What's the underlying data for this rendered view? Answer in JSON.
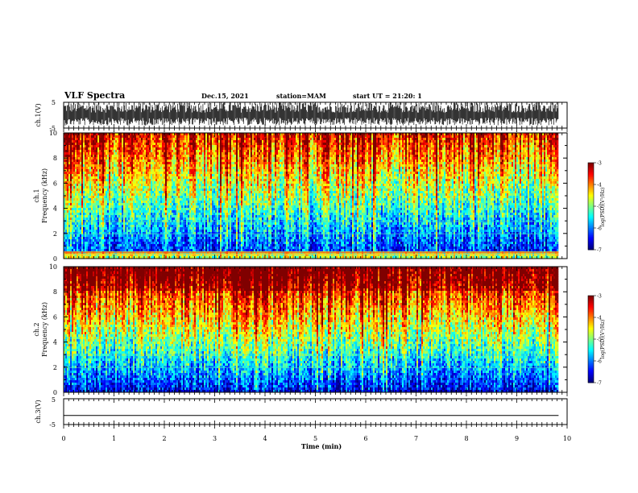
{
  "header": {
    "title": "VLF Spectra",
    "date": "Dec.15, 2021",
    "station": "station=MAM",
    "start": "start UT =  21:20: 1"
  },
  "chart_data": [
    {
      "type": "line",
      "name": "ch1-waveform",
      "ylabel": "ch.1(V)",
      "ylim": [
        -5,
        5
      ],
      "yticks": [
        "5",
        "-5"
      ],
      "xlim": [
        0,
        10
      ],
      "description_values": "dense noisy waveform spanning roughly -4 to +5 V over 0–9.8 min"
    },
    {
      "type": "heatmap",
      "name": "ch1-spectrogram",
      "ylabel_line1": "ch.1",
      "ylabel_line2": "Frequency (kHz)",
      "ylim": [
        0,
        10
      ],
      "yticks": [
        "0",
        "2",
        "4",
        "6",
        "8",
        "10"
      ],
      "xlim": [
        0,
        10
      ],
      "data_xmax": 9.83,
      "colorbar": {
        "label": "log(PSD)(V²/Hz)",
        "range": [
          -7,
          -3
        ],
        "ticks": [
          "-3",
          "-4",
          "-5",
          "-6",
          "-7"
        ]
      }
    },
    {
      "type": "heatmap",
      "name": "ch2-spectrogram",
      "ylabel_line1": "ch.2",
      "ylabel_line2": "Frequency (kHz)",
      "ylim": [
        0,
        10
      ],
      "yticks": [
        "0",
        "2",
        "4",
        "6",
        "8",
        "10"
      ],
      "xlim": [
        0,
        10
      ],
      "data_xmax": 9.83,
      "colorbar": {
        "label": "log(PSD)(V²/Hz)",
        "range": [
          -7,
          -3
        ],
        "ticks": [
          "-3",
          "-4",
          "-5",
          "-6",
          "-7"
        ]
      }
    },
    {
      "type": "line",
      "name": "ch3-waveform",
      "ylabel": "ch.3(V)",
      "ylim": [
        -5,
        5
      ],
      "yticks": [
        "5",
        "-5"
      ],
      "xlim": [
        0,
        10
      ],
      "values_constant": -1.5
    }
  ],
  "xaxis": {
    "label": "Time (min)",
    "ticks": [
      "0",
      "1",
      "2",
      "3",
      "4",
      "5",
      "6",
      "7",
      "8",
      "9",
      "10"
    ]
  },
  "colors": {
    "ink": "#000000",
    "background": "#ffffff"
  }
}
